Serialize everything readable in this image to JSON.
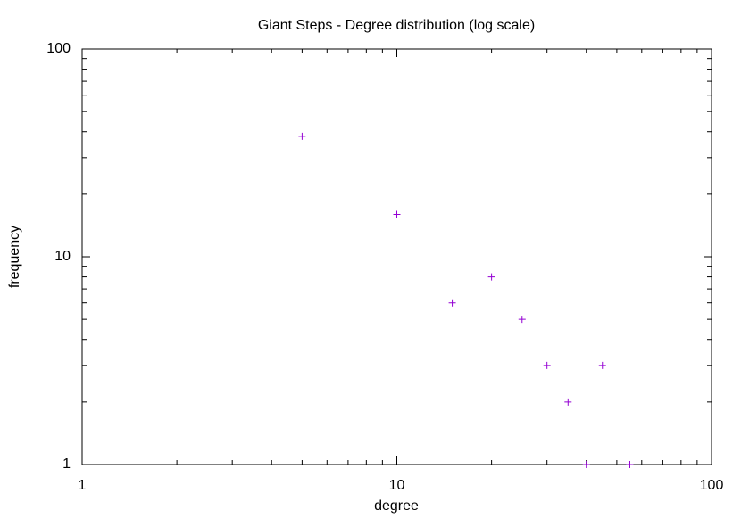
{
  "chart_data": {
    "type": "scatter",
    "title": "Giant Steps - Degree distribution (log scale)",
    "x_label": "degree",
    "y_label": "frequency",
    "x": [
      5,
      10,
      15,
      20,
      25,
      30,
      35,
      40,
      45,
      55
    ],
    "values": [
      38,
      16,
      6,
      8,
      5,
      3,
      2,
      1,
      3,
      1
    ],
    "color": "#9400d3",
    "marker": "plus",
    "xlog": true,
    "ylog": true,
    "xlim": [
      1,
      100
    ],
    "ylim": [
      1,
      100
    ],
    "xticks": [
      1,
      10,
      100
    ],
    "yticks": [
      1,
      10,
      100
    ],
    "xminorticks": [
      2,
      3,
      4,
      5,
      6,
      7,
      8,
      9,
      20,
      30,
      40,
      50,
      60,
      70,
      80,
      90
    ],
    "yminorticks": [
      2,
      3,
      4,
      5,
      6,
      7,
      8,
      9,
      20,
      30,
      40,
      50,
      60,
      70,
      80,
      90
    ]
  }
}
